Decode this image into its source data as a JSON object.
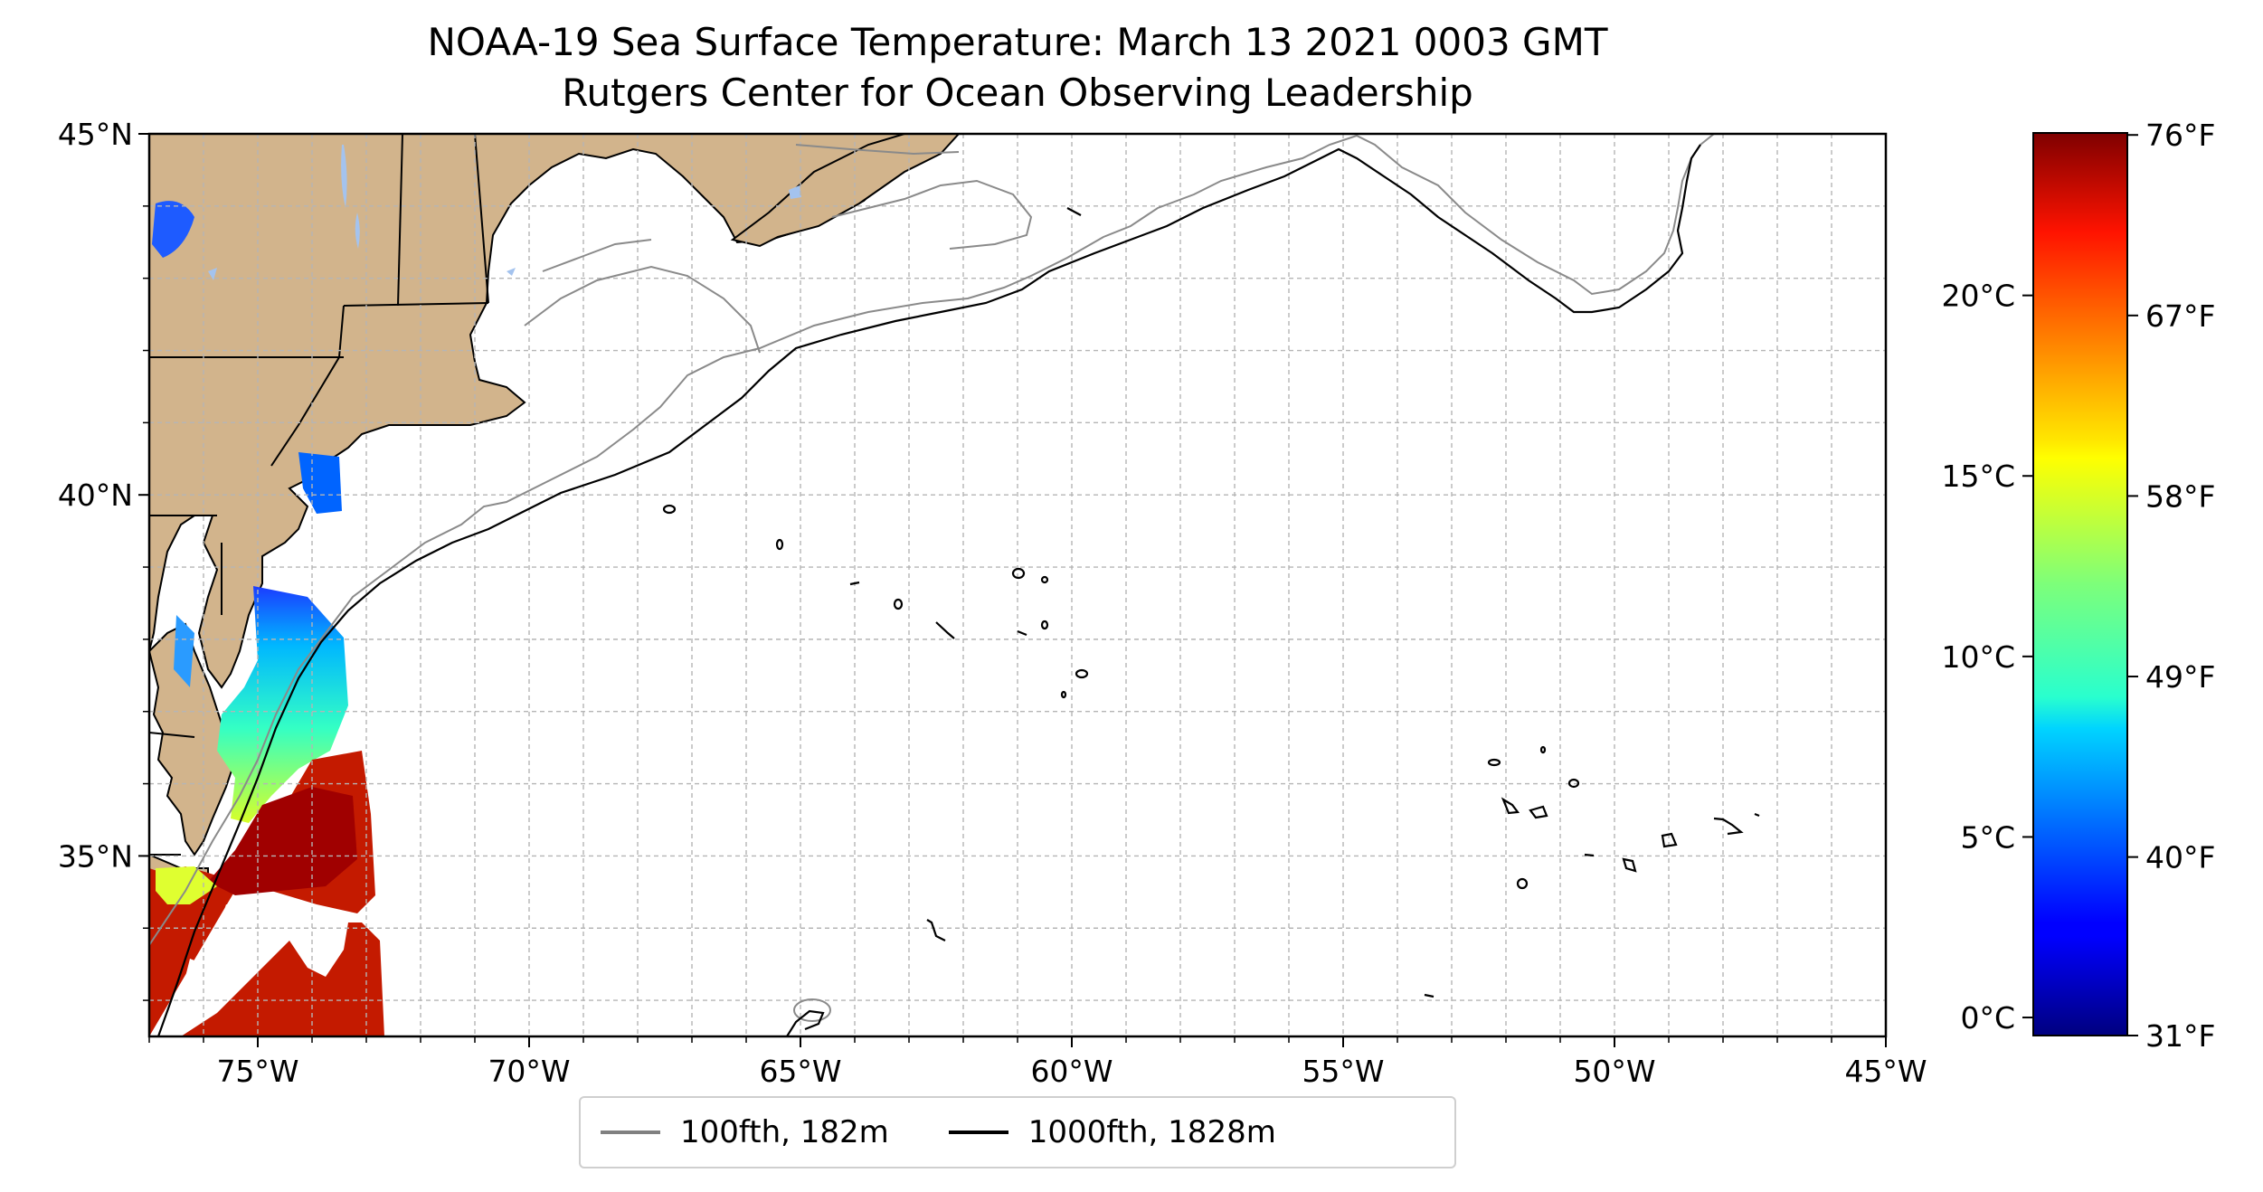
{
  "title": {
    "line1": "NOAA-19 Sea Surface Temperature: March 13 2021 0003 GMT",
    "line2": "Rutgers Center for Ocean Observing Leadership"
  },
  "map": {
    "lon_range": [
      -77,
      -45
    ],
    "lat_range": [
      32.5,
      45
    ],
    "lon_ticks": [
      {
        "value": -75,
        "label": "75°W"
      },
      {
        "value": -70,
        "label": "70°W"
      },
      {
        "value": -65,
        "label": "65°W"
      },
      {
        "value": -60,
        "label": "60°W"
      },
      {
        "value": -55,
        "label": "55°W"
      },
      {
        "value": -50,
        "label": "50°W"
      },
      {
        "value": -45,
        "label": "45°W"
      }
    ],
    "lat_ticks": [
      {
        "value": 45,
        "label": "45°N"
      },
      {
        "value": 40,
        "label": "40°N"
      },
      {
        "value": 35,
        "label": "35°N"
      }
    ],
    "gridlines": "dashed, every 1°",
    "land_color": "#d2b48c",
    "lake_color": "#a4c3ee"
  },
  "legend": {
    "items": [
      {
        "label": "100fth, 182m",
        "color": "#808080"
      },
      {
        "label": "1000fth, 1828m",
        "color": "#000000"
      }
    ]
  },
  "colorbar": {
    "colormap": "jet",
    "range_c": [
      -0.5,
      24.5
    ],
    "celsius_ticks": [
      {
        "value": 0,
        "label": "0°C"
      },
      {
        "value": 5,
        "label": "5°C"
      },
      {
        "value": 10,
        "label": "10°C"
      },
      {
        "value": 15,
        "label": "15°C"
      },
      {
        "value": 20,
        "label": "20°C"
      }
    ],
    "fahrenheit_ticks": [
      {
        "value": 31,
        "label": "31°F"
      },
      {
        "value": 40,
        "label": "40°F"
      },
      {
        "value": 49,
        "label": "49°F"
      },
      {
        "value": 58,
        "label": "58°F"
      },
      {
        "value": 67,
        "label": "67°F"
      },
      {
        "value": 76,
        "label": "76°F"
      }
    ]
  }
}
